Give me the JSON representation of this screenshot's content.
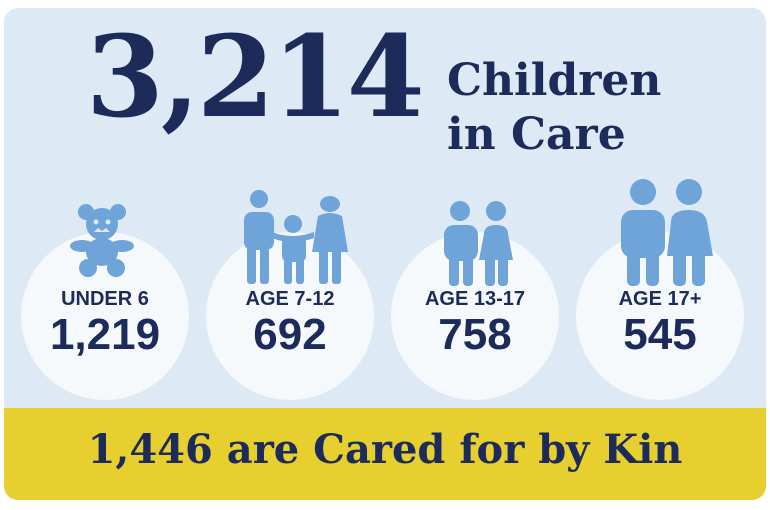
{
  "headline": {
    "number": "3,214",
    "line1": "Children",
    "line2": "in Care"
  },
  "groups": [
    {
      "label": "UNDER 6",
      "value": "1,219",
      "icon": "teddy-bear-icon"
    },
    {
      "label": "AGE 7-12",
      "value": "692",
      "icon": "family-icon"
    },
    {
      "label": "AGE 13-17",
      "value": "758",
      "icon": "teen-pair-icon"
    },
    {
      "label": "AGE 17+",
      "value": "545",
      "icon": "adult-pair-icon"
    }
  ],
  "footer": {
    "text": "1,446 are Cared for by Kin"
  },
  "colors": {
    "background": "#dde9f5",
    "navy": "#1c2b5a",
    "icon": "#6fa4d8",
    "band": "#e6cf2e",
    "circle": "#f6f9fc"
  }
}
